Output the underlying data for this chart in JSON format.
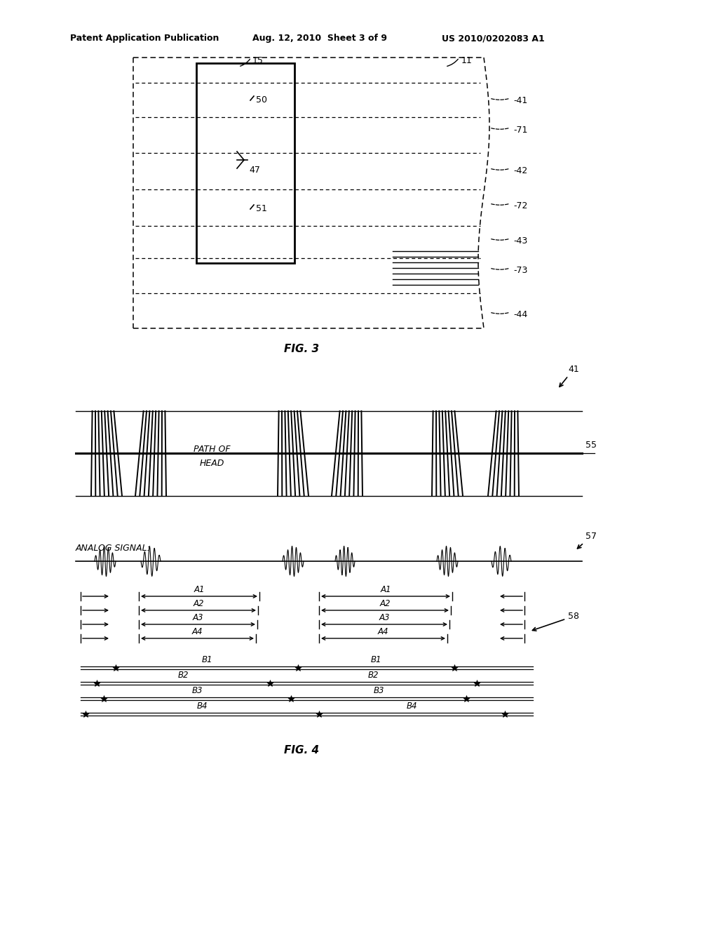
{
  "bg_color": "#ffffff",
  "header_left": "Patent Application Publication",
  "header_mid": "Aug. 12, 2010  Sheet 3 of 9",
  "header_right": "US 2010/0202083 A1",
  "fig3_label": "FIG. 3",
  "fig4_label": "FIG. 4"
}
